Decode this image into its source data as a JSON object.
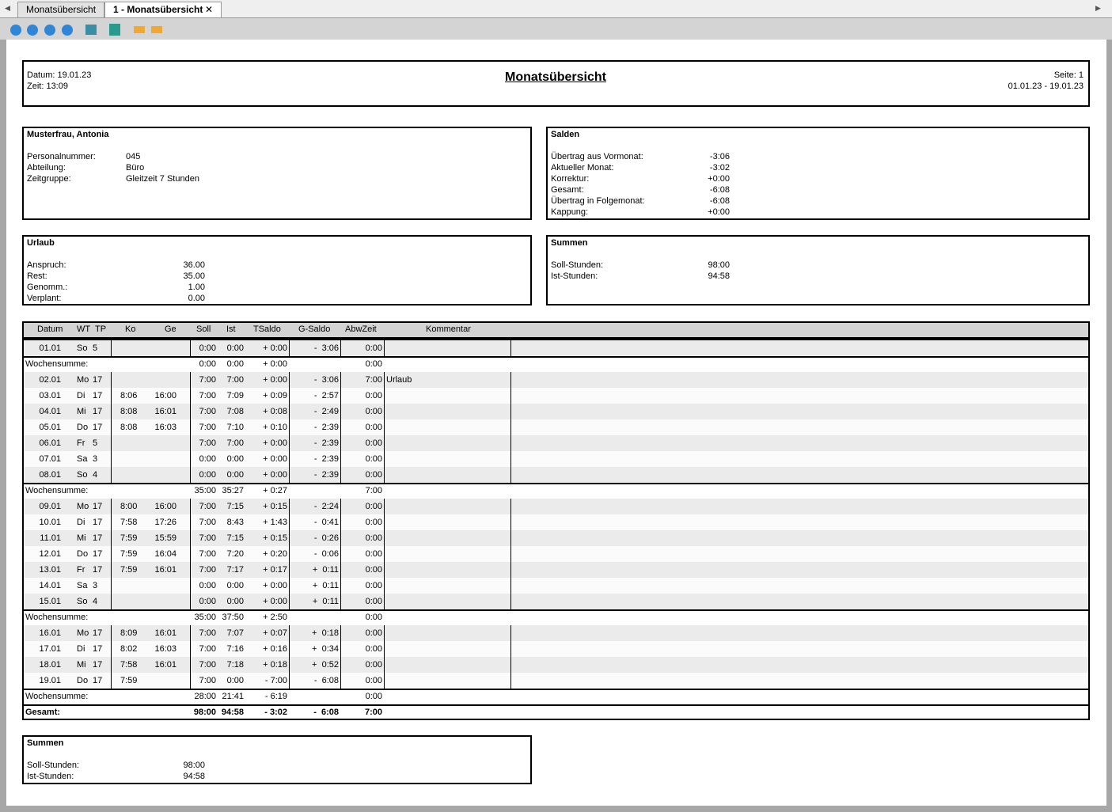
{
  "tabs": [
    "Monatsübersicht",
    "1 - Monatsübersicht"
  ],
  "header": {
    "date": "Datum: 19.01.23",
    "time": "Zeit: 13:09",
    "title": "Monatsübersicht",
    "page": "Seite: 1",
    "range": "01.01.23 - 19.01.23"
  },
  "person": {
    "title": "Musterfrau, Antonia",
    "rows": [
      [
        "Personalnummer:",
        "045"
      ],
      [
        "Abteilung:",
        "Büro"
      ],
      [
        "Zeitgruppe:",
        "Gleitzeit 7 Stunden"
      ]
    ]
  },
  "salden": {
    "title": "Salden",
    "rows": [
      [
        "Übertrag aus Vormonat:",
        "-3:06"
      ],
      [
        "Aktueller Monat:",
        "-3:02"
      ],
      [
        "Korrektur:",
        "+0:00"
      ],
      [
        "Gesamt:",
        "-6:08"
      ],
      [
        "Übertrag in Folgemonat:",
        "-6:08"
      ],
      [
        "Kappung:",
        "+0:00"
      ]
    ]
  },
  "urlaub": {
    "title": "Urlaub",
    "rows": [
      [
        "Anspruch:",
        "36.00"
      ],
      [
        "Rest:",
        "35.00"
      ],
      [
        "Genomm.:",
        "1.00"
      ],
      [
        "Verplant:",
        "0.00"
      ]
    ]
  },
  "summen": {
    "title": "Summen",
    "rows": [
      [
        "Soll-Stunden:",
        "98:00"
      ],
      [
        "Ist-Stunden:",
        "94:58"
      ]
    ]
  },
  "table": {
    "columns": [
      "Datum",
      "WT",
      "TP",
      "Ko",
      "Ge",
      "Soll",
      "Ist",
      "TSaldo",
      "G-Saldo",
      "AbwZeit",
      "Kommentar"
    ],
    "weeks": [
      {
        "days": [
          {
            "datum": "01.01",
            "wt": "So",
            "tp": "5",
            "soll": "0:00",
            "ist": "0:00",
            "tsaldo": "+ 0:00",
            "gsaldo": "-  3:06",
            "abwzeit": "0:00"
          }
        ],
        "sum": {
          "label": "Wochensumme:",
          "soll": "0:00",
          "ist": "0:00",
          "tsaldo": "+ 0:00",
          "abwzeit": "0:00"
        }
      },
      {
        "days": [
          {
            "datum": "02.01",
            "wt": "Mo",
            "tp": "17",
            "soll": "7:00",
            "ist": "7:00",
            "tsaldo": "+ 0:00",
            "gsaldo": "-  3:06",
            "abwzeit": "7:00",
            "kommentar": "Urlaub"
          },
          {
            "datum": "03.01",
            "wt": "Di",
            "tp": "17",
            "ko": "8:06",
            "ge": "16:00",
            "soll": "7:00",
            "ist": "7:09",
            "tsaldo": "+ 0:09",
            "gsaldo": "-  2:57",
            "abwzeit": "0:00"
          },
          {
            "datum": "04.01",
            "wt": "Mi",
            "tp": "17",
            "ko": "8:08",
            "ge": "16:01",
            "soll": "7:00",
            "ist": "7:08",
            "tsaldo": "+ 0:08",
            "gsaldo": "-  2:49",
            "abwzeit": "0:00"
          },
          {
            "datum": "05.01",
            "wt": "Do",
            "tp": "17",
            "ko": "8:08",
            "ge": "16:03",
            "soll": "7:00",
            "ist": "7:10",
            "tsaldo": "+ 0:10",
            "gsaldo": "-  2:39",
            "abwzeit": "0:00"
          },
          {
            "datum": "06.01",
            "wt": "Fr",
            "tp": "5",
            "soll": "7:00",
            "ist": "7:00",
            "tsaldo": "+ 0:00",
            "gsaldo": "-  2:39",
            "abwzeit": "0:00"
          },
          {
            "datum": "07.01",
            "wt": "Sa",
            "tp": "3",
            "soll": "0:00",
            "ist": "0:00",
            "tsaldo": "+ 0:00",
            "gsaldo": "-  2:39",
            "abwzeit": "0:00"
          },
          {
            "datum": "08.01",
            "wt": "So",
            "tp": "4",
            "soll": "0:00",
            "ist": "0:00",
            "tsaldo": "+ 0:00",
            "gsaldo": "-  2:39",
            "abwzeit": "0:00"
          }
        ],
        "sum": {
          "label": "Wochensumme:",
          "soll": "35:00",
          "ist": "35:27",
          "tsaldo": "+ 0:27",
          "abwzeit": "7:00"
        }
      },
      {
        "days": [
          {
            "datum": "09.01",
            "wt": "Mo",
            "tp": "17",
            "ko": "8:00",
            "ge": "16:00",
            "soll": "7:00",
            "ist": "7:15",
            "tsaldo": "+ 0:15",
            "gsaldo": "-  2:24",
            "abwzeit": "0:00"
          },
          {
            "datum": "10.01",
            "wt": "Di",
            "tp": "17",
            "ko": "7:58",
            "ge": "17:26",
            "soll": "7:00",
            "ist": "8:43",
            "tsaldo": "+ 1:43",
            "gsaldo": "-  0:41",
            "abwzeit": "0:00"
          },
          {
            "datum": "11.01",
            "wt": "Mi",
            "tp": "17",
            "ko": "7:59",
            "ge": "15:59",
            "soll": "7:00",
            "ist": "7:15",
            "tsaldo": "+ 0:15",
            "gsaldo": "-  0:26",
            "abwzeit": "0:00"
          },
          {
            "datum": "12.01",
            "wt": "Do",
            "tp": "17",
            "ko": "7:59",
            "ge": "16:04",
            "soll": "7:00",
            "ist": "7:20",
            "tsaldo": "+ 0:20",
            "gsaldo": "-  0:06",
            "abwzeit": "0:00"
          },
          {
            "datum": "13.01",
            "wt": "Fr",
            "tp": "17",
            "ko": "7:59",
            "ge": "16:01",
            "soll": "7:00",
            "ist": "7:17",
            "tsaldo": "+ 0:17",
            "gsaldo": "+  0:11",
            "abwzeit": "0:00"
          },
          {
            "datum": "14.01",
            "wt": "Sa",
            "tp": "3",
            "soll": "0:00",
            "ist": "0:00",
            "tsaldo": "+ 0:00",
            "gsaldo": "+  0:11",
            "abwzeit": "0:00"
          },
          {
            "datum": "15.01",
            "wt": "So",
            "tp": "4",
            "soll": "0:00",
            "ist": "0:00",
            "tsaldo": "+ 0:00",
            "gsaldo": "+  0:11",
            "abwzeit": "0:00"
          }
        ],
        "sum": {
          "label": "Wochensumme:",
          "soll": "35:00",
          "ist": "37:50",
          "tsaldo": "+ 2:50",
          "abwzeit": "0:00"
        }
      },
      {
        "days": [
          {
            "datum": "16.01",
            "wt": "Mo",
            "tp": "17",
            "ko": "8:09",
            "ge": "16:01",
            "soll": "7:00",
            "ist": "7:07",
            "tsaldo": "+ 0:07",
            "gsaldo": "+  0:18",
            "abwzeit": "0:00"
          },
          {
            "datum": "17.01",
            "wt": "Di",
            "tp": "17",
            "ko": "8:02",
            "ge": "16:03",
            "soll": "7:00",
            "ist": "7:16",
            "tsaldo": "+ 0:16",
            "gsaldo": "+  0:34",
            "abwzeit": "0:00"
          },
          {
            "datum": "18.01",
            "wt": "Mi",
            "tp": "17",
            "ko": "7:58",
            "ge": "16:01",
            "soll": "7:00",
            "ist": "7:18",
            "tsaldo": "+ 0:18",
            "gsaldo": "+  0:52",
            "abwzeit": "0:00"
          },
          {
            "datum": "19.01",
            "wt": "Do",
            "tp": "17",
            "ko": "7:59",
            "soll": "7:00",
            "ist": "0:00",
            "tsaldo": "- 7:00",
            "gsaldo": "-  6:08",
            "abwzeit": "0:00"
          }
        ],
        "sum": {
          "label": "Wochensumme:",
          "soll": "28:00",
          "ist": "21:41",
          "tsaldo": "- 6:19",
          "abwzeit": "0:00"
        }
      }
    ],
    "total": {
      "label": "Gesamt:",
      "soll": "98:00",
      "ist": "94:58",
      "tsaldo": "- 3:02",
      "gsaldo": "-  6:08",
      "abwzeit": "7:00"
    }
  },
  "summen_bottom": {
    "title": "Summen",
    "rows": [
      [
        "Soll-Stunden:",
        "98:00"
      ],
      [
        "Ist-Stunden:",
        "94:58"
      ]
    ]
  }
}
